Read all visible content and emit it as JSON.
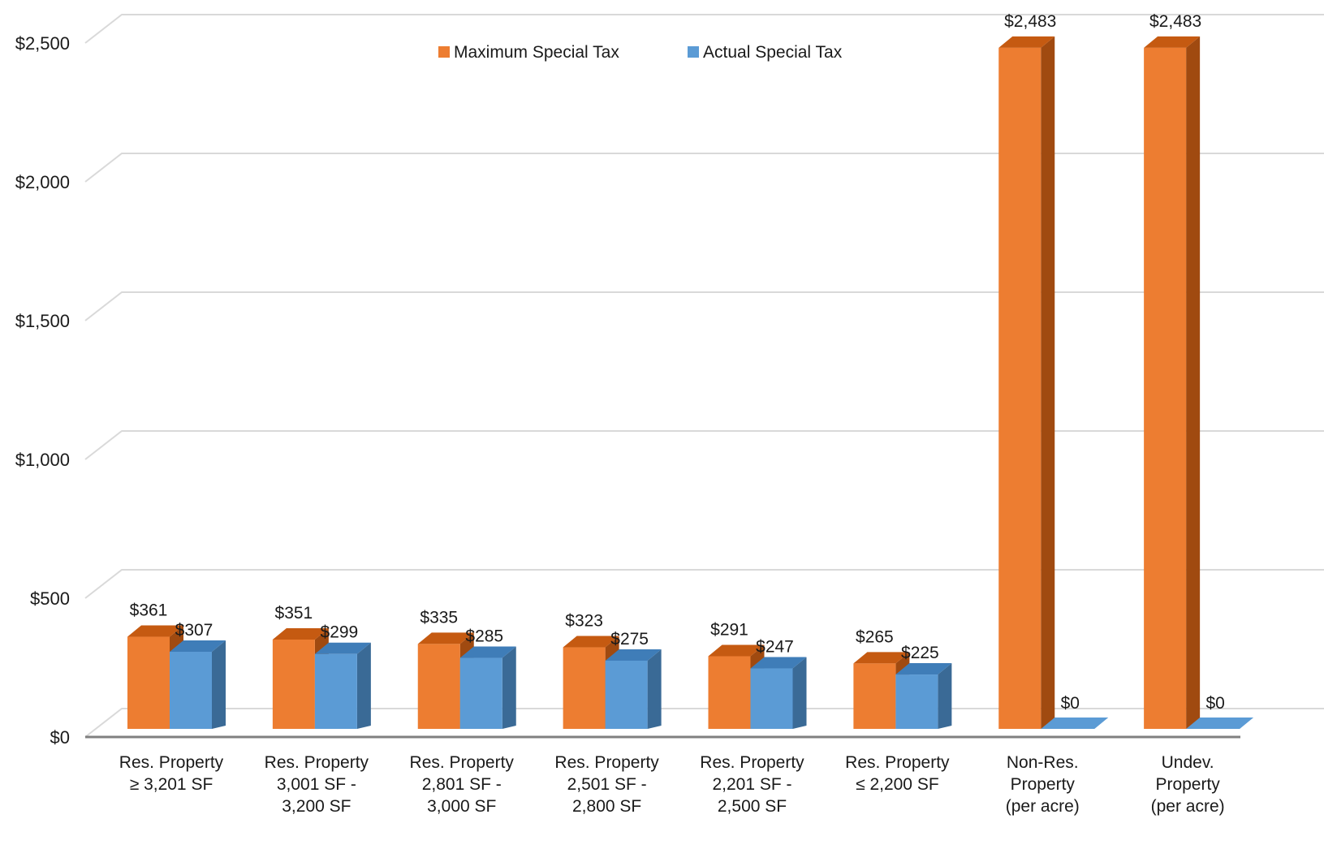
{
  "chart_data": {
    "type": "bar",
    "style": "3d-clustered-column",
    "categories": [
      [
        "Res. Property",
        "≥ 3,201 SF"
      ],
      [
        "Res. Property",
        "3,001 SF -",
        "3,200 SF"
      ],
      [
        "Res. Property",
        "2,801 SF -",
        "3,000 SF"
      ],
      [
        "Res. Property",
        "2,501 SF -",
        "2,800 SF"
      ],
      [
        "Res. Property",
        "2,201 SF -",
        "2,500 SF"
      ],
      [
        "Res. Property",
        "≤ 2,200 SF"
      ],
      [
        "Non-Res.",
        "Property",
        "(per acre)"
      ],
      [
        "Undev.",
        "Property",
        "(per acre)"
      ]
    ],
    "series": [
      {
        "name": "Maximum Special Tax",
        "color": "#ED7D31",
        "top_color": "#C55A11",
        "side_color": "#A04A10",
        "values": [
          361,
          351,
          335,
          323,
          291,
          265,
          2483,
          2483
        ],
        "labels": [
          "$361",
          "$351",
          "$335",
          "$323",
          "$291",
          "$265",
          "$2,483",
          "$2,483"
        ]
      },
      {
        "name": "Actual Special Tax",
        "color": "#5B9BD5",
        "top_color": "#3F7DB8",
        "side_color": "#3A6A96",
        "values": [
          307,
          299,
          285,
          275,
          247,
          225,
          0,
          0
        ],
        "labels": [
          "$307",
          "$299",
          "$285",
          "$275",
          "$247",
          "$225",
          "$0",
          "$0"
        ]
      }
    ],
    "y_ticks": [
      0,
      500,
      1000,
      1500,
      2000,
      2500
    ],
    "y_tick_labels": [
      "$0",
      "$500",
      "$1,000",
      "$1,500",
      "$2,000",
      "$2,500"
    ],
    "ylim": [
      0,
      2500
    ],
    "grid": true,
    "legend": "top-center"
  }
}
